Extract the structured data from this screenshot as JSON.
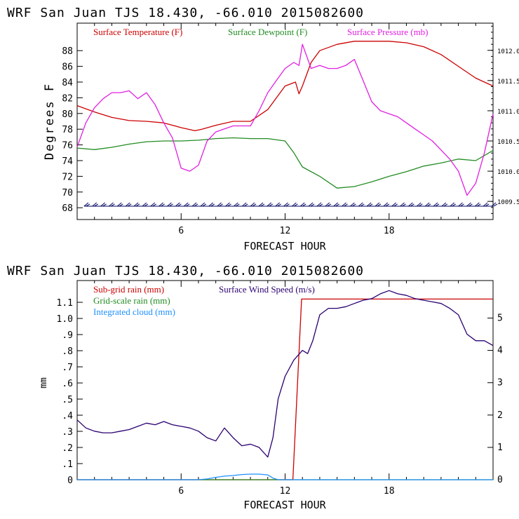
{
  "chart_data": [
    {
      "type": "line",
      "title": "WRF   San Juan TJS  18.430, -66.010  2015082600",
      "xlabel": "FORECAST HOUR",
      "ylabel": "Degrees F",
      "xlim": [
        0,
        24
      ],
      "ylim": [
        66.5,
        91.5
      ],
      "y2lim": [
        1009.2,
        1012.45
      ],
      "x_ticks": [
        "6",
        "12",
        "18"
      ],
      "y_ticks": [
        "68",
        "70",
        "72",
        "74",
        "76",
        "78",
        "80",
        "82",
        "84",
        "86",
        "88"
      ],
      "y2_ticks": [
        "1009.5",
        "1010.0",
        "1010.5",
        "1011.0",
        "1011.5",
        "1012.0"
      ],
      "grid": false,
      "legend_position": "top",
      "series": [
        {
          "name": "Surface Temperature (F)",
          "color": "#cc0000",
          "axis": "left",
          "x": [
            0,
            1,
            2,
            3,
            4,
            5,
            6,
            6.8,
            7.2,
            8,
            9,
            10,
            11,
            12,
            12.6,
            12.8,
            13,
            13.5,
            14,
            15,
            16,
            17,
            18,
            19,
            20,
            21,
            22,
            23,
            24
          ],
          "y": [
            81.0,
            80.2,
            79.5,
            79.1,
            79.0,
            78.8,
            78.2,
            77.8,
            78.0,
            78.5,
            79.0,
            79.0,
            80.5,
            83.5,
            84.0,
            82.5,
            83.5,
            86.5,
            88.0,
            88.8,
            89.2,
            89.2,
            89.2,
            89.0,
            88.5,
            87.5,
            86.0,
            84.5,
            83.5
          ]
        },
        {
          "name": "Surface Dewpoint (F)",
          "color": "#228b22",
          "axis": "left",
          "x": [
            0,
            1,
            2,
            3,
            4,
            5,
            6,
            7,
            8,
            9,
            10,
            11,
            12,
            12.5,
            13,
            14,
            15,
            16,
            17,
            18,
            19,
            20,
            21,
            22,
            23,
            24
          ],
          "y": [
            75.6,
            75.4,
            75.7,
            76.1,
            76.4,
            76.5,
            76.5,
            76.6,
            76.8,
            76.9,
            76.8,
            76.8,
            76.5,
            75.0,
            73.2,
            72.0,
            70.5,
            70.7,
            71.3,
            72.0,
            72.6,
            73.3,
            73.7,
            74.2,
            74.0,
            75.3
          ]
        },
        {
          "name": "Surface Pressure (mb)",
          "color": "#e020e0",
          "axis": "right",
          "x": [
            0,
            0.5,
            1,
            1.5,
            2,
            2.5,
            3,
            3.5,
            4,
            4.5,
            5,
            5.5,
            6,
            6.5,
            7,
            7.5,
            8,
            8.5,
            9,
            9.5,
            10,
            10.5,
            11,
            11.5,
            12,
            12.5,
            12.8,
            13,
            13.5,
            14,
            14.5,
            15,
            15.5,
            16,
            16.5,
            17,
            17.5,
            18,
            18.5,
            19,
            19.5,
            20,
            20.5,
            21,
            21.5,
            22,
            22.5,
            23,
            23.5,
            24
          ],
          "y": [
            1010.4,
            1010.8,
            1011.05,
            1011.2,
            1011.3,
            1011.3,
            1011.33,
            1011.2,
            1011.3,
            1011.1,
            1010.8,
            1010.55,
            1010.05,
            1010.0,
            1010.1,
            1010.5,
            1010.65,
            1010.7,
            1010.75,
            1010.75,
            1010.75,
            1011.0,
            1011.3,
            1011.5,
            1011.7,
            1011.8,
            1011.75,
            1012.1,
            1011.7,
            1011.75,
            1011.7,
            1011.7,
            1011.75,
            1011.85,
            1011.5,
            1011.15,
            1011.0,
            1010.95,
            1010.9,
            1010.8,
            1010.7,
            1010.6,
            1010.5,
            1010.35,
            1010.2,
            1010.0,
            1009.6,
            1009.8,
            1010.3,
            1010.95
          ]
        }
      ],
      "wind_barbs": {
        "y_level": 68.2,
        "x_from": 0.4,
        "x_to": 24,
        "dx": 0.48,
        "color": "#000060"
      }
    },
    {
      "type": "line",
      "title": "WRF   San Juan TJS  18.430, -66.010  2015082600",
      "xlabel": "FORECAST HOUR",
      "ylabel": "mm",
      "xlim": [
        0,
        24
      ],
      "ylim": [
        0,
        1.235
      ],
      "y2lim": [
        0,
        6.16
      ],
      "x_ticks": [
        "6",
        "12",
        "18"
      ],
      "y_ticks": [
        "0",
        ".1",
        ".2",
        ".3",
        ".4",
        ".5",
        ".6",
        ".7",
        ".8",
        ".9",
        "1.0",
        "1.1"
      ],
      "y2_ticks": [
        "0",
        "1",
        "2",
        "3",
        "4",
        "5"
      ],
      "grid": false,
      "legend_position": "top-left",
      "series": [
        {
          "name": "Sub-grid rain (mm)",
          "color": "#cc0000",
          "axis": "left",
          "x": [
            0,
            12.45,
            12.95,
            24
          ],
          "y": [
            0,
            0,
            1.12,
            1.12
          ]
        },
        {
          "name": "Grid-scale rain (mm)",
          "color": "#228b22",
          "axis": "left",
          "x": [
            0,
            24
          ],
          "y": [
            0,
            0
          ]
        },
        {
          "name": "Integrated cloud (mm)",
          "color": "#1e90ff",
          "axis": "left",
          "x": [
            0,
            7,
            7.5,
            8,
            8.5,
            9,
            9.5,
            10,
            10.5,
            11,
            11.3,
            11.6,
            24
          ],
          "y": [
            0,
            0,
            0.005,
            0.015,
            0.022,
            0.026,
            0.032,
            0.035,
            0.035,
            0.03,
            0.01,
            0,
            0
          ]
        },
        {
          "name": "Surface Wind Speed (m/s)",
          "color": "#2a0070",
          "axis": "right",
          "x": [
            0,
            0.5,
            1,
            1.5,
            2,
            2.5,
            3,
            3.5,
            4,
            4.5,
            5,
            5.5,
            6,
            6.5,
            7,
            7.5,
            8,
            8.5,
            9,
            9.5,
            10,
            10.5,
            11,
            11.3,
            11.6,
            12,
            12.5,
            13,
            13.3,
            13.6,
            14,
            14.5,
            15,
            15.5,
            16,
            16.5,
            17,
            17.5,
            18,
            18.5,
            19,
            19.5,
            20,
            20.5,
            21,
            21.5,
            22,
            22.5,
            23,
            23.5,
            24
          ],
          "y": [
            1.85,
            1.6,
            1.5,
            1.45,
            1.45,
            1.5,
            1.55,
            1.65,
            1.75,
            1.7,
            1.8,
            1.7,
            1.65,
            1.6,
            1.5,
            1.3,
            1.2,
            1.6,
            1.3,
            1.05,
            1.1,
            1.0,
            0.7,
            1.3,
            2.5,
            3.2,
            3.7,
            4.0,
            3.9,
            4.3,
            5.1,
            5.3,
            5.3,
            5.35,
            5.45,
            5.55,
            5.6,
            5.75,
            5.85,
            5.75,
            5.7,
            5.6,
            5.55,
            5.5,
            5.45,
            5.3,
            5.1,
            4.5,
            4.3,
            4.3,
            4.15
          ]
        }
      ]
    }
  ]
}
